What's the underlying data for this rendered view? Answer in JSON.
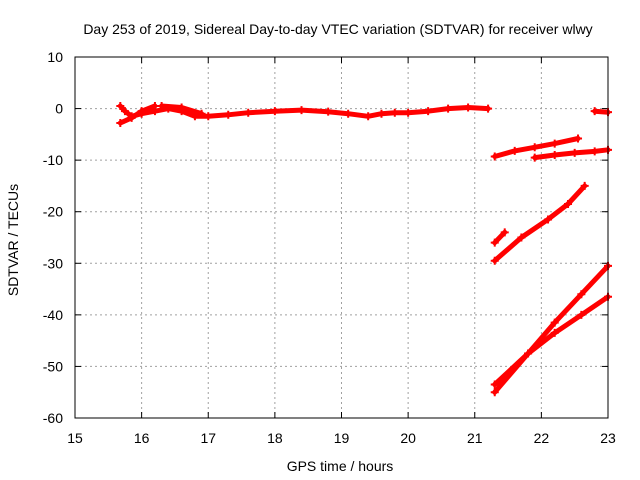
{
  "chart_data": {
    "type": "scatter",
    "title": "Day 253 of 2019, Sidereal Day-to-day VTEC variation (SDTVAR) for receiver wlwy",
    "xlabel": "GPS time / hours",
    "ylabel": "SDTVAR / TECUs",
    "xlim": [
      15,
      23
    ],
    "ylim": [
      -60,
      10
    ],
    "xticks": [
      15,
      16,
      17,
      18,
      19,
      20,
      21,
      22,
      23
    ],
    "yticks": [
      10,
      0,
      -10,
      -20,
      -30,
      -40,
      -50,
      -60
    ],
    "grid": true,
    "series_color": "#ff0000",
    "series": [
      {
        "x": [
          15.68,
          15.75,
          15.85,
          16.0,
          16.2,
          16.4,
          16.6,
          16.8,
          17.0,
          17.3,
          17.6,
          18.0,
          18.4,
          18.8,
          19.1,
          19.4,
          19.6,
          19.8,
          20.0,
          20.3,
          20.6,
          20.9,
          21.2
        ],
        "y": [
          0.5,
          -0.5,
          -1.5,
          -1.0,
          -0.5,
          0.0,
          -0.5,
          -1.5,
          -1.5,
          -1.2,
          -0.8,
          -0.5,
          -0.3,
          -0.6,
          -1.0,
          -1.5,
          -1.0,
          -0.8,
          -0.8,
          -0.5,
          0.0,
          0.2,
          0.0
        ]
      },
      {
        "x": [
          15.68,
          15.85,
          16.0,
          16.2
        ],
        "y": [
          -2.8,
          -1.8,
          -0.5,
          0.5
        ]
      },
      {
        "x": [
          16.3,
          16.6,
          16.9
        ],
        "y": [
          0.5,
          0.2,
          -1.0
        ]
      },
      {
        "x": [
          21.3,
          21.6,
          21.9,
          22.2,
          22.55
        ],
        "y": [
          -9.3,
          -8.2,
          -7.5,
          -6.8,
          -5.8
        ]
      },
      {
        "x": [
          21.9,
          22.2,
          22.5,
          22.8,
          23.0
        ],
        "y": [
          -9.5,
          -9.0,
          -8.6,
          -8.3,
          -8.0
        ]
      },
      {
        "x": [
          22.8,
          23.0
        ],
        "y": [
          -0.5,
          -0.7
        ]
      },
      {
        "x": [
          21.3,
          21.45
        ],
        "y": [
          -26.0,
          -24.0
        ]
      },
      {
        "x": [
          21.3,
          21.7,
          22.1,
          22.4,
          22.65
        ],
        "y": [
          -29.5,
          -25.0,
          -21.5,
          -18.5,
          -15.0
        ]
      },
      {
        "x": [
          21.3,
          21.8,
          22.2,
          22.6,
          23.0
        ],
        "y": [
          -55.0,
          -47.5,
          -41.5,
          -36.0,
          -30.5
        ]
      },
      {
        "x": [
          21.3,
          21.8,
          22.2,
          22.6,
          23.0
        ],
        "y": [
          -53.5,
          -47.5,
          -43.5,
          -40.0,
          -36.5
        ]
      }
    ]
  }
}
